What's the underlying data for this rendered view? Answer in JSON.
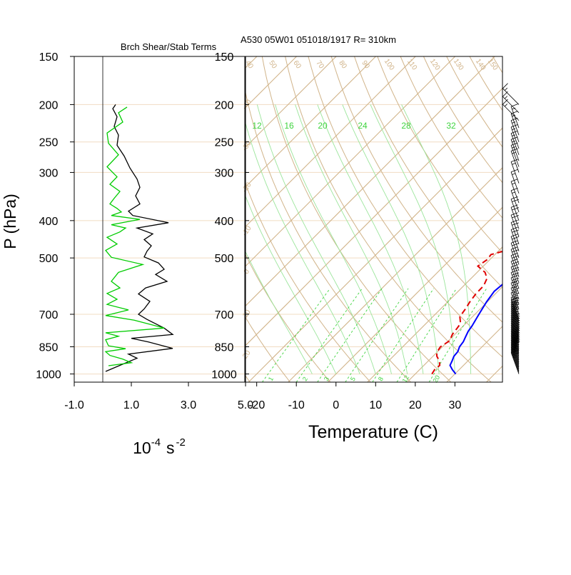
{
  "titles": {
    "left_panel": "Brch Shear/Stab Terms",
    "main": "A530 05W01 051018/1917 R= 310km"
  },
  "colors": {
    "isobar": "#f1dcc2",
    "dry_adiabat": "#d1b48a",
    "isotherm": "#d1b48a",
    "moist_adiabat": "#9be59b",
    "mixing_ratio": "#3fd43f",
    "temperature": "#0000ff",
    "dewpoint": "#e00000",
    "shear": "#000000",
    "stability": "#00cc00",
    "wind_barb": "#000000"
  },
  "chart_data": [
    {
      "id": "stability_panel",
      "type": "line",
      "xlabel": "10",
      "xlabel_exp": "-4",
      "xlabel_unit": "s",
      "xlabel_unit_exp": "-2",
      "ylabel": "P (hPa)",
      "xlim": [
        -1.0,
        5.0
      ],
      "xticks": [
        "-1.0",
        "1.0",
        "3.0",
        "5.0"
      ],
      "xtick_values": [
        -1,
        1,
        3,
        5
      ],
      "pressure_levels": [
        150,
        200,
        250,
        300,
        400,
        500,
        700,
        850,
        1000
      ],
      "pressure_labels": [
        "150",
        "200",
        "250",
        "300",
        "400",
        "500",
        "700",
        "850",
        "1000"
      ],
      "reference_line_x": 0,
      "series": [
        {
          "key": "shear",
          "points": [
            [
              0.45,
              200
            ],
            [
              0.35,
              205
            ],
            [
              0.5,
              215
            ],
            [
              0.4,
              228
            ],
            [
              0.55,
              240
            ],
            [
              0.5,
              255
            ],
            [
              0.75,
              272
            ],
            [
              0.95,
              292
            ],
            [
              1.2,
              312
            ],
            [
              1.3,
              328
            ],
            [
              1.15,
              345
            ],
            [
              1.3,
              362
            ],
            [
              0.9,
              378
            ],
            [
              1.05,
              388
            ],
            [
              2.3,
              405
            ],
            [
              1.2,
              418
            ],
            [
              1.75,
              433
            ],
            [
              1.45,
              448
            ],
            [
              1.7,
              465
            ],
            [
              1.55,
              480
            ],
            [
              1.45,
              497
            ],
            [
              1.95,
              515
            ],
            [
              2.15,
              535
            ],
            [
              1.85,
              552
            ],
            [
              2.25,
              575
            ],
            [
              1.5,
              598
            ],
            [
              1.25,
              620
            ],
            [
              1.65,
              648
            ],
            [
              1.45,
              678
            ],
            [
              1.25,
              700
            ],
            [
              1.55,
              722
            ],
            [
              2.15,
              760
            ],
            [
              2.45,
              790
            ],
            [
              1.0,
              808
            ],
            [
              1.6,
              826
            ],
            [
              2.45,
              858
            ],
            [
              0.9,
              888
            ],
            [
              1.2,
              910
            ],
            [
              0.6,
              950
            ],
            [
              0.1,
              985
            ]
          ]
        },
        {
          "key": "stability",
          "points": [
            [
              0.85,
              203
            ],
            [
              0.55,
              210
            ],
            [
              0.7,
              222
            ],
            [
              0.15,
              237
            ],
            [
              0.2,
              252
            ],
            [
              0.55,
              270
            ],
            [
              0.15,
              290
            ],
            [
              0.5,
              308
            ],
            [
              0.25,
              322
            ],
            [
              0.6,
              336
            ],
            [
              0.4,
              350
            ],
            [
              0.25,
              362
            ],
            [
              0.5,
              372
            ],
            [
              0.65,
              380
            ],
            [
              0.3,
              388
            ],
            [
              1.3,
              397
            ],
            [
              0.3,
              410
            ],
            [
              0.8,
              418
            ],
            [
              0.6,
              428
            ],
            [
              0.15,
              442
            ],
            [
              0.5,
              460
            ],
            [
              0.1,
              478
            ],
            [
              0.3,
              498
            ],
            [
              1.4,
              520
            ],
            [
              0.55,
              545
            ],
            [
              0.3,
              575
            ],
            [
              0.6,
              598
            ],
            [
              0.15,
              618
            ],
            [
              0.5,
              640
            ],
            [
              0.15,
              660
            ],
            [
              0.9,
              682
            ],
            [
              0.1,
              705
            ],
            [
              1.1,
              725
            ],
            [
              2.15,
              760
            ],
            [
              0.1,
              782
            ],
            [
              0.55,
              798
            ],
            [
              0.1,
              815
            ],
            [
              0.2,
              845
            ],
            [
              0.8,
              860
            ],
            [
              0.1,
              875
            ],
            [
              0.25,
              895
            ],
            [
              0.7,
              915
            ],
            [
              1.0,
              935
            ],
            [
              0.2,
              952
            ]
          ]
        }
      ]
    },
    {
      "id": "skewt",
      "type": "line",
      "xlabel": "Temperature (C)",
      "xlim": [
        -23,
        42
      ],
      "xticks": [
        "-20",
        "-10",
        "0",
        "10",
        "20",
        "30"
      ],
      "xtick_values": [
        -20,
        -10,
        0,
        10,
        20,
        30
      ],
      "pressure_levels": [
        150,
        200,
        250,
        300,
        400,
        500,
        700,
        850,
        1000
      ],
      "pressure_labels": [
        "150",
        "200",
        "250",
        "300",
        "400",
        "500",
        "700",
        "850",
        "1000"
      ],
      "dry_adiabat_labels": [
        "40",
        "50",
        "60",
        "70",
        "80",
        "90",
        "100",
        "110",
        "120",
        "130",
        "140",
        "150"
      ],
      "mixing_ratio_labels": [
        "12",
        "16",
        "20",
        "24",
        "28",
        "32"
      ],
      "mixing_ratio_values": [
        12,
        16,
        20,
        24,
        28,
        32
      ],
      "mixing_ratio_bottom_labels": [
        "1",
        "2",
        "3",
        "5",
        "8",
        "12",
        "20"
      ],
      "mixing_ratio_bottom_values": [
        1,
        2,
        3,
        5,
        8,
        12,
        20
      ],
      "isotherm_edge_labels": [
        "-40",
        "-30",
        "-20",
        "-10",
        "0",
        "10",
        "20"
      ],
      "series": [
        {
          "key": "temperature",
          "points": [
            [
              30.2,
              1000
            ],
            [
              28.3,
              975
            ],
            [
              26.6,
              950
            ],
            [
              26.0,
              925
            ],
            [
              25.3,
              900
            ],
            [
              25.1,
              875
            ],
            [
              24.3,
              850
            ],
            [
              24.0,
              825
            ],
            [
              23.3,
              800
            ],
            [
              22.6,
              775
            ],
            [
              22.2,
              750
            ],
            [
              21.6,
              725
            ],
            [
              21.0,
              700
            ],
            [
              19.8,
              650
            ],
            [
              19.1,
              610
            ],
            [
              19.5,
              580
            ],
            [
              19.5,
              560
            ],
            [
              20.3,
              540
            ],
            [
              20.7,
              520
            ],
            [
              20.2,
              500
            ],
            [
              19.3,
              480
            ],
            [
              18.4,
              460
            ],
            [
              17.5,
              440
            ],
            [
              17.3,
              420
            ],
            [
              16.8,
              410
            ],
            [
              16.0,
              400
            ],
            [
              15.3,
              390
            ],
            [
              14.5,
              380
            ],
            [
              13.5,
              365
            ],
            [
              12.5,
              350
            ],
            [
              11.5,
              335
            ],
            [
              9.8,
              315
            ],
            [
              8.0,
              300
            ],
            [
              6.5,
              285
            ],
            [
              4.5,
              268
            ],
            [
              3.0,
              255
            ],
            [
              0.5,
              240
            ],
            [
              -0.5,
              233
            ],
            [
              -2.5,
              220
            ],
            [
              -4.2,
              210
            ],
            [
              -6.0,
              200
            ],
            [
              -8.5,
              190
            ]
          ]
        },
        {
          "key": "dewpoint",
          "points": [
            [
              24.2,
              1000
            ],
            [
              23.8,
              975
            ],
            [
              24.0,
              950
            ],
            [
              22.8,
              925
            ],
            [
              21.0,
              900
            ],
            [
              20.0,
              880
            ],
            [
              19.5,
              850
            ],
            [
              20.3,
              820
            ],
            [
              19.4,
              790
            ],
            [
              19.0,
              760
            ],
            [
              18.7,
              740
            ],
            [
              16.8,
              710
            ],
            [
              16.3,
              680
            ],
            [
              15.6,
              650
            ],
            [
              15.1,
              620
            ],
            [
              15.0,
              590
            ],
            [
              14.0,
              565
            ],
            [
              12.0,
              545
            ],
            [
              8.6,
              525
            ],
            [
              9.3,
              505
            ],
            [
              9.0,
              490
            ],
            [
              12.5,
              475
            ],
            [
              16.9,
              462
            ],
            [
              11.5,
              448
            ],
            [
              13.0,
              435
            ],
            [
              10.0,
              420
            ],
            [
              7.1,
              410
            ],
            [
              9.1,
              398
            ],
            [
              8.5,
              385
            ],
            [
              7.7,
              370
            ],
            [
              6.2,
              350
            ],
            [
              4.8,
              335
            ],
            [
              3.0,
              320
            ],
            [
              1.3,
              305
            ],
            [
              -0.5,
              290
            ],
            [
              -3.5,
              275
            ],
            [
              -6.8,
              258
            ],
            [
              -10.5,
              244
            ],
            [
              -13.5,
              232
            ],
            [
              -16.5,
              224
            ],
            [
              -18.5,
              220
            ]
          ]
        }
      ]
    },
    {
      "id": "wind_profile",
      "type": "wind_barbs",
      "levels": [
        [
          1000,
          "S",
          25
        ],
        [
          990,
          "S",
          25
        ],
        [
          980,
          "S",
          25
        ],
        [
          970,
          "S",
          25
        ],
        [
          960,
          "S",
          25
        ],
        [
          950,
          "S",
          25
        ],
        [
          940,
          "S",
          25
        ],
        [
          930,
          "S",
          25
        ],
        [
          920,
          "S",
          30
        ],
        [
          910,
          "S",
          30
        ],
        [
          900,
          "S",
          30
        ],
        [
          890,
          "S",
          30
        ],
        [
          880,
          "S",
          30
        ],
        [
          870,
          "S",
          30
        ],
        [
          860,
          "S",
          30
        ],
        [
          850,
          "S",
          30
        ],
        [
          840,
          "S",
          30
        ],
        [
          830,
          "S",
          30
        ],
        [
          820,
          "S",
          30
        ],
        [
          810,
          "S",
          30
        ],
        [
          800,
          "S",
          30
        ],
        [
          790,
          "S",
          30
        ],
        [
          780,
          "S",
          30
        ],
        [
          770,
          "S",
          25
        ],
        [
          760,
          "S",
          25
        ],
        [
          750,
          "S",
          25
        ],
        [
          740,
          "S",
          25
        ],
        [
          730,
          "S",
          25
        ],
        [
          720,
          "S",
          25
        ],
        [
          700,
          "S",
          25
        ],
        [
          680,
          "S",
          25
        ],
        [
          660,
          "S",
          25
        ],
        [
          640,
          "S",
          25
        ],
        [
          620,
          "S",
          20
        ],
        [
          600,
          "S",
          20
        ],
        [
          580,
          "S",
          20
        ],
        [
          560,
          "S",
          20
        ],
        [
          540,
          "S",
          20
        ],
        [
          520,
          "S",
          20
        ],
        [
          500,
          "S",
          20
        ],
        [
          480,
          "S",
          20
        ],
        [
          460,
          "S",
          20
        ],
        [
          440,
          "S",
          20
        ],
        [
          420,
          "S",
          20
        ],
        [
          400,
          "S",
          20
        ],
        [
          380,
          "S",
          15
        ],
        [
          360,
          "S",
          15
        ],
        [
          340,
          "S",
          15
        ],
        [
          320,
          "S",
          15
        ],
        [
          300,
          "S",
          15
        ],
        [
          290,
          "S",
          15
        ],
        [
          280,
          "S",
          15
        ],
        [
          270,
          "S",
          15
        ],
        [
          260,
          "S",
          15
        ],
        [
          250,
          "S",
          15
        ],
        [
          240,
          "S",
          15
        ],
        [
          230,
          "S",
          15
        ],
        [
          220,
          "SW",
          15
        ],
        [
          210,
          "SW",
          15
        ],
        [
          200,
          "SW",
          15
        ],
        [
          190,
          "SW",
          15
        ],
        [
          180,
          "SW",
          15
        ],
        [
          170,
          "SW",
          15
        ],
        [
          160,
          "SW",
          15
        ],
        [
          150,
          "SW",
          15
        ]
      ]
    }
  ]
}
